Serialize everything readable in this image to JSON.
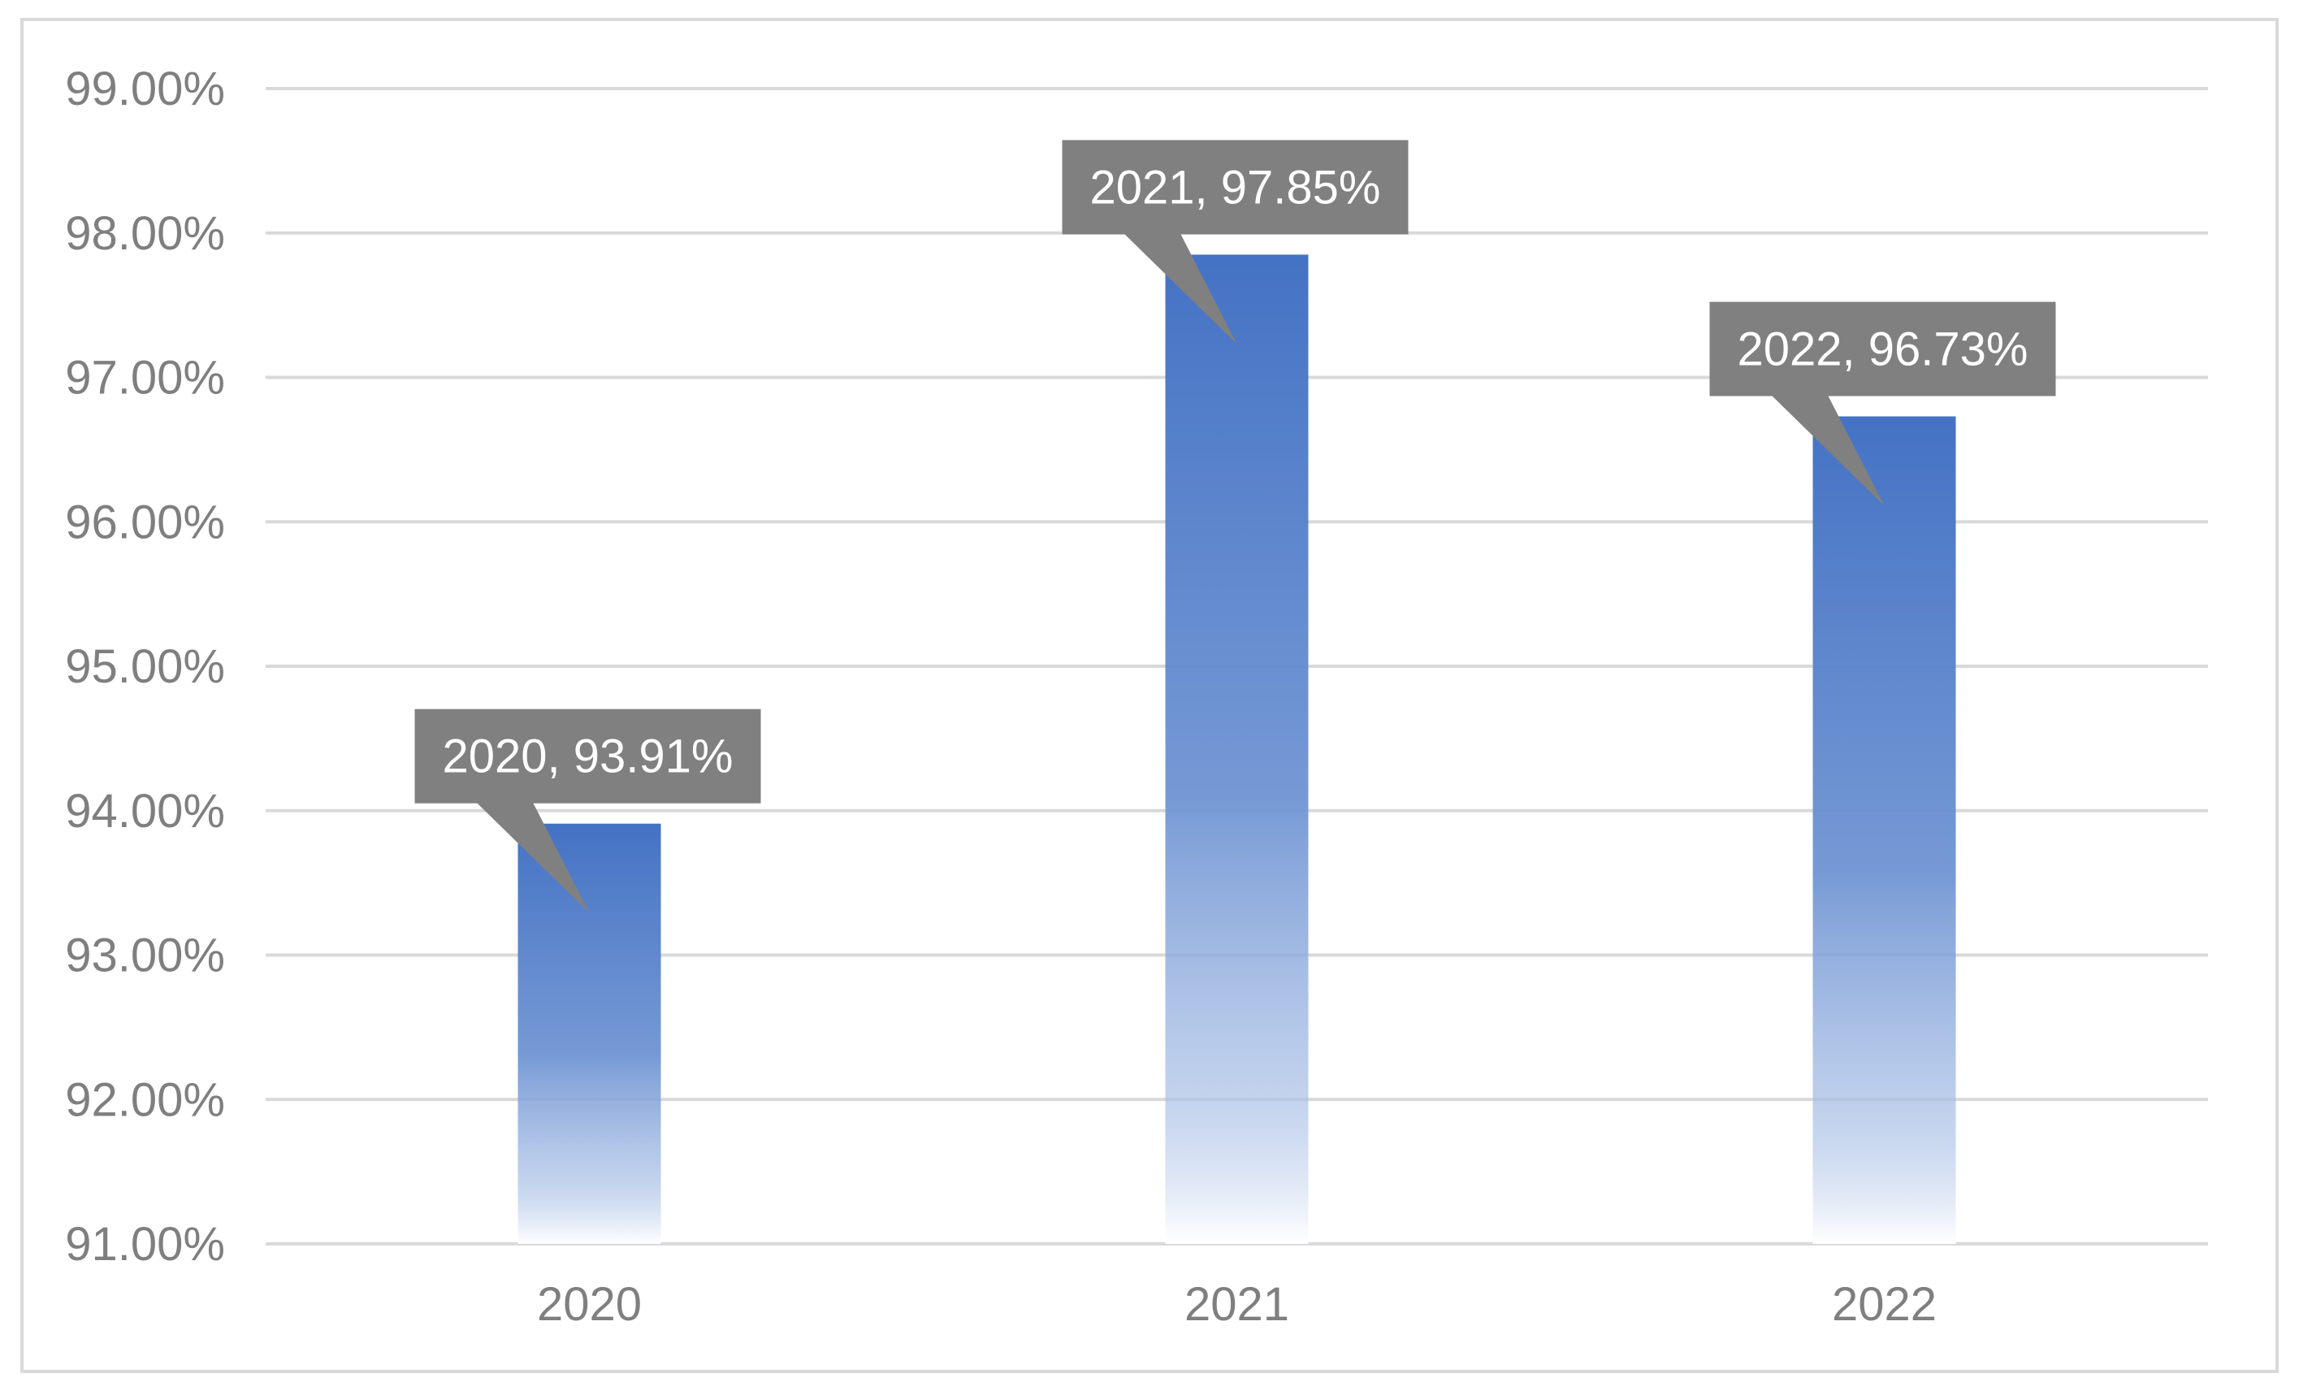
{
  "chart_data": {
    "type": "bar",
    "categories": [
      "2020",
      "2021",
      "2022"
    ],
    "values": [
      93.91,
      97.85,
      96.73
    ],
    "data_labels": [
      "2020, 93.91%",
      "2021, 97.85%",
      "2022, 96.73%"
    ],
    "title": "",
    "xlabel": "",
    "ylabel": "",
    "ylim": [
      91,
      99
    ],
    "yticks": [
      99,
      98,
      97,
      96,
      95,
      94,
      93,
      92,
      91
    ],
    "ytick_labels": [
      "99.00%",
      "98.00%",
      "97.00%",
      "96.00%",
      "95.00%",
      "94.00%",
      "93.00%",
      "92.00%",
      "91.00%"
    ],
    "grid": true,
    "legend": "none",
    "colors": {
      "bar_top": "#4472c4",
      "bar_bottom": "#ffffff",
      "label_box": "#808080",
      "gridline": "#d9d9d9",
      "axis_text": "#7f7f7f"
    }
  }
}
